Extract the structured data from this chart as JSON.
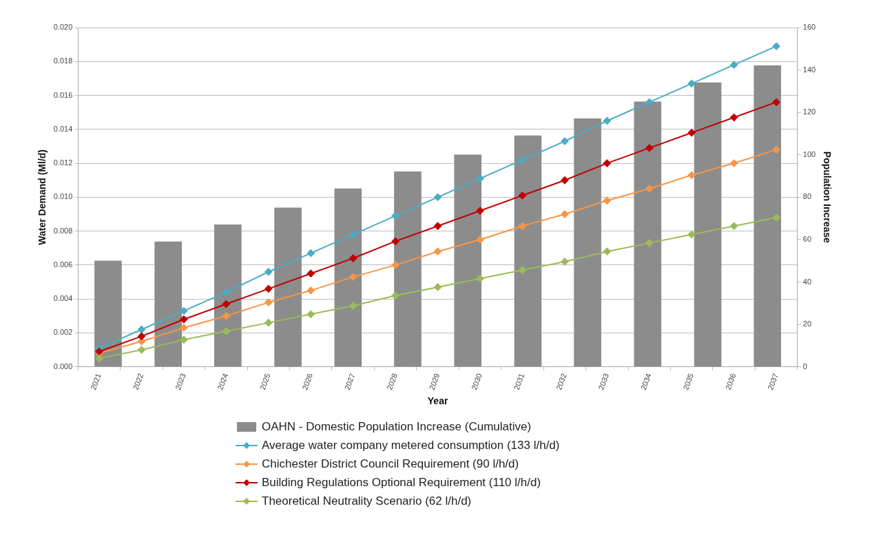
{
  "chart_data": {
    "type": "line",
    "xlabel": "Year",
    "ylabel": "Water Demand (Ml/d)",
    "y2label": "Population Increase",
    "x": [
      2021,
      2022,
      2023,
      2024,
      2025,
      2026,
      2027,
      2028,
      2029,
      2030,
      2031,
      2032,
      2033,
      2034,
      2035,
      2036,
      2037
    ],
    "xlim": [
      2020.5,
      2037.5
    ],
    "xticks": [
      2021,
      2022,
      2023,
      2024,
      2025,
      2026,
      2027,
      2028,
      2029,
      2030,
      2031,
      2032,
      2033,
      2034,
      2035,
      2036,
      2037
    ],
    "ylim": [
      0,
      0.02
    ],
    "yticks": [
      {
        "value": 0,
        "label": "0.000"
      },
      {
        "value": 0.002,
        "label": "0.002"
      },
      {
        "value": 0.004,
        "label": "0.004"
      },
      {
        "value": 0.006,
        "label": "0.006"
      },
      {
        "value": 0.008,
        "label": "0.008"
      },
      {
        "value": 0.01,
        "label": "0.010"
      },
      {
        "value": 0.012,
        "label": "0.012"
      },
      {
        "value": 0.014,
        "label": "0.014"
      },
      {
        "value": 0.016,
        "label": "0.016"
      },
      {
        "value": 0.018,
        "label": "0.018"
      },
      {
        "value": 0.02,
        "label": "0.020"
      }
    ],
    "y2lim": [
      0,
      160
    ],
    "y2ticks": [
      0,
      20,
      40,
      60,
      80,
      100,
      120,
      140,
      160
    ],
    "grid": "y",
    "legend": "bottom",
    "marker": "diamond",
    "line_style": "solid",
    "series": [
      {
        "name": "OAHN - Domestic Population Increase (Cumulative)",
        "type": "bar",
        "axis": "y2",
        "color": "#8c8c8c",
        "x": [
          2021.21,
          2022.63,
          2024.04,
          2025.46,
          2026.88,
          2028.29,
          2029.71,
          2031.13,
          2032.54,
          2033.96,
          2035.38,
          2036.79
        ],
        "values": [
          50,
          59,
          67,
          75,
          84,
          92,
          100,
          109,
          117,
          125,
          134,
          142
        ]
      },
      {
        "name": "Average water company metered consumption (133 l/h/d)",
        "color": "#4bacc6",
        "values": [
          0.0011,
          0.0022,
          0.0033,
          0.0044,
          0.0056,
          0.0067,
          0.0078,
          0.0089,
          0.01,
          0.0111,
          0.0122,
          0.0133,
          0.0145,
          0.0156,
          0.0167,
          0.0178,
          0.0189
        ]
      },
      {
        "name": "Chichester District Council Requirement (90 l/h/d)",
        "color": "#f79646",
        "values": [
          0.0008,
          0.0015,
          0.0023,
          0.003,
          0.0038,
          0.0045,
          0.0053,
          0.006,
          0.0068,
          0.0075,
          0.0083,
          0.009,
          0.0098,
          0.0105,
          0.0113,
          0.012,
          0.0128
        ]
      },
      {
        "name": "Building Regulations Optional Requirement (110 l/h/d)",
        "color": "#c00000",
        "values": [
          0.0009,
          0.0018,
          0.0028,
          0.0037,
          0.0046,
          0.0055,
          0.0064,
          0.0074,
          0.0083,
          0.0092,
          0.0101,
          0.011,
          0.012,
          0.0129,
          0.0138,
          0.0147,
          0.0156
        ]
      },
      {
        "name": "Theoretical Neutrality Scenario (62 l/h/d)",
        "color": "#9bbb59",
        "values": [
          0.0005,
          0.001,
          0.0016,
          0.0021,
          0.0026,
          0.0031,
          0.0036,
          0.0042,
          0.0047,
          0.0052,
          0.0057,
          0.0062,
          0.0068,
          0.0073,
          0.0078,
          0.0083,
          0.0088
        ]
      }
    ]
  }
}
